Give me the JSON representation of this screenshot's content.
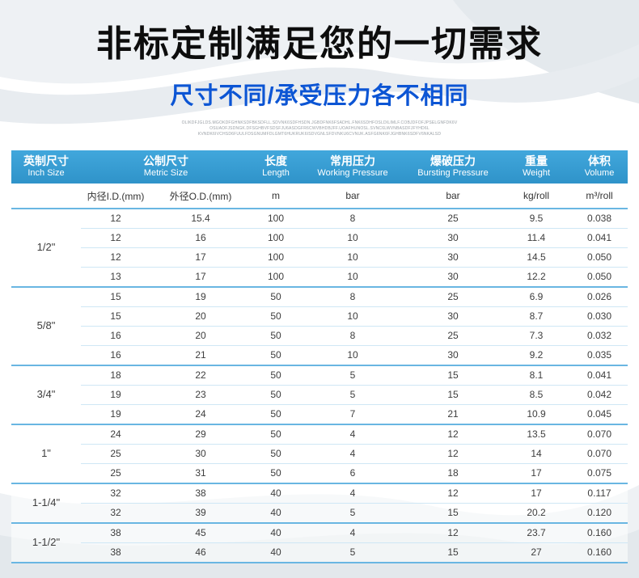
{
  "page": {
    "title": "非标定制满足您的一切需求",
    "subtitle": "尺寸不同/承受压力各不相同",
    "fine_print": [
      "OLIKDFJGLDS.MGOKDFGHNKSDFBKSDFLL.SDVNK6SDFHSDN.JGBDFNK6FSADHL.FNK6SDHFOSLDILIMLF.COBJDFOFJPSELGNFDK6V",
      "OSUAOFJSDNGK.DFSGHBVFSDSFJU6ASDGFR6CWVBHDBJFF.UOAFHUNOSL.SVNC6LWVNBASDFJFYHD6L",
      "KVNDK6IVCHSD6FUULFDSGNUMFDLGMT6HUKRUK6ISDVGNLSFDVNKU6CVNUK.ASFG6NK6FJGHBNK6SDFV6NKALSD"
    ]
  },
  "table": {
    "header": [
      {
        "zh": "英制尺寸",
        "en": "Inch Size"
      },
      {
        "zh": "公制尺寸",
        "en": "Metric Size"
      },
      {
        "zh": "长度",
        "en": "Length"
      },
      {
        "zh": "常用压力",
        "en": "Working Pressure"
      },
      {
        "zh": "爆破压力",
        "en": "Bursting Pressure"
      },
      {
        "zh": "重量",
        "en": "Weight"
      },
      {
        "zh": "体积",
        "en": "Volume"
      }
    ],
    "units": [
      "内径I.D.(mm)",
      "外径O.D.(mm)",
      "m",
      "bar",
      "bar",
      "kg/roll",
      "m³/roll"
    ],
    "groups": [
      {
        "size": "1/2\"",
        "rows": [
          [
            "12",
            "15.4",
            "100",
            "8",
            "25",
            "9.5",
            "0.038"
          ],
          [
            "12",
            "16",
            "100",
            "10",
            "30",
            "11.4",
            "0.041"
          ],
          [
            "12",
            "17",
            "100",
            "10",
            "30",
            "14.5",
            "0.050"
          ],
          [
            "13",
            "17",
            "100",
            "10",
            "30",
            "12.2",
            "0.050"
          ]
        ]
      },
      {
        "size": "5/8\"",
        "rows": [
          [
            "15",
            "19",
            "50",
            "8",
            "25",
            "6.9",
            "0.026"
          ],
          [
            "15",
            "20",
            "50",
            "10",
            "30",
            "8.7",
            "0.030"
          ],
          [
            "16",
            "20",
            "50",
            "8",
            "25",
            "7.3",
            "0.032"
          ],
          [
            "16",
            "21",
            "50",
            "10",
            "30",
            "9.2",
            "0.035"
          ]
        ]
      },
      {
        "size": "3/4\"",
        "rows": [
          [
            "18",
            "22",
            "50",
            "5",
            "15",
            "8.1",
            "0.041"
          ],
          [
            "19",
            "23",
            "50",
            "5",
            "15",
            "8.5",
            "0.042"
          ],
          [
            "19",
            "24",
            "50",
            "7",
            "21",
            "10.9",
            "0.045"
          ]
        ]
      },
      {
        "size": "1\"",
        "rows": [
          [
            "24",
            "29",
            "50",
            "4",
            "12",
            "13.5",
            "0.070"
          ],
          [
            "25",
            "30",
            "50",
            "4",
            "12",
            "14",
            "0.070"
          ],
          [
            "25",
            "31",
            "50",
            "6",
            "18",
            "17",
            "0.075"
          ]
        ]
      },
      {
        "size": "1-1/4\"",
        "rows": [
          [
            "32",
            "38",
            "40",
            "4",
            "12",
            "17",
            "0.117"
          ],
          [
            "32",
            "39",
            "40",
            "5",
            "15",
            "20.2",
            "0.120"
          ]
        ]
      },
      {
        "size": "1-1/2\"",
        "rows": [
          [
            "38",
            "45",
            "40",
            "4",
            "12",
            "23.7",
            "0.160"
          ],
          [
            "38",
            "46",
            "40",
            "5",
            "15",
            "27",
            "0.160"
          ]
        ]
      }
    ]
  },
  "colors": {
    "header_blue": "#359dd3",
    "subtitle_blue": "#0c55d4",
    "row_line": "#cfe7f5",
    "group_line": "#69b6e2"
  }
}
